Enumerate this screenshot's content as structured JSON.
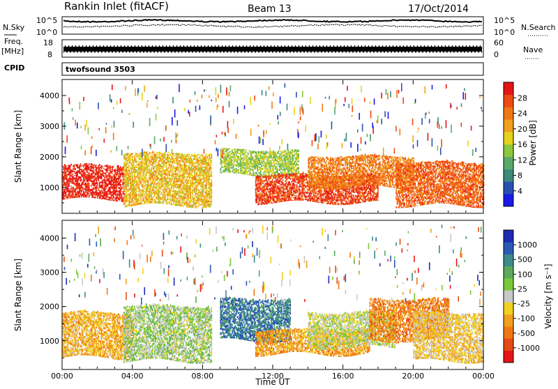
{
  "header": {
    "title": "Rankin Inlet (fitACF)",
    "beam": "Beam 13",
    "date": "17/Oct/2014"
  },
  "noise_panel": {
    "left_label": "N.Sky",
    "right_label": "N.Search",
    "left_ticks": [
      "10^5",
      "10^0"
    ],
    "right_ticks": [
      "10^5",
      "10^0"
    ]
  },
  "freq_panel": {
    "left_label_line1": "Freq.",
    "left_label_line2": "[MHz]",
    "right_label": "Nave",
    "left_ticks": [
      "18",
      "8"
    ],
    "right_ticks": [
      "60",
      "0"
    ]
  },
  "cpid_panel": {
    "label": "CPID",
    "program": "twofsound 3503"
  },
  "time_axis": {
    "label": "Time UT",
    "ticks": [
      "00:00",
      "04:00",
      "08:00",
      "12:00",
      "16:00",
      "20:00",
      "00:00"
    ]
  },
  "power_panel": {
    "ylabel": "Slant Range [km]",
    "yticks": [
      "1000",
      "2000",
      "3000",
      "4000"
    ],
    "colorbar_label": "Power [dB]",
    "colorbar_ticks": [
      "4",
      "8",
      "12",
      "16",
      "20",
      "24",
      "28"
    ],
    "colors": [
      "#1a1ae6",
      "#2a4fb0",
      "#3c8a7a",
      "#5aa86a",
      "#8cc83c",
      "#e6d21e",
      "#f0a01e",
      "#f07814",
      "#f04a14",
      "#e61414"
    ]
  },
  "velocity_panel": {
    "ylabel": "Slant Range [km]",
    "yticks": [
      "1000",
      "2000",
      "3000",
      "4000"
    ],
    "colorbar_label": "Velocity [m s⁻¹]",
    "colorbar_ticks": [
      "1000",
      "500",
      "100",
      "25",
      "-25",
      "-100",
      "-500",
      "-1000"
    ],
    "colors": [
      "#1e2ab4",
      "#2a5ab4",
      "#3c8a8a",
      "#5aaa5a",
      "#78c83c",
      "#c8c8c8",
      "#f0d21e",
      "#f0a01e",
      "#f07814",
      "#e64a14",
      "#e61414"
    ]
  },
  "chart_data": [
    {
      "type": "heatmap",
      "name": "Power",
      "xlabel": "Time UT",
      "ylabel": "Slant Range [km]",
      "xlim": [
        "00:00",
        "24:00"
      ],
      "ylim": [
        180,
        4500
      ],
      "zlabel": "Power [dB]",
      "zlim": [
        0,
        30
      ],
      "bands": [
        {
          "t_start": 0,
          "t_end": 3.5,
          "r_low": 600,
          "r_high": 1700,
          "z": 28
        },
        {
          "t_start": 3.5,
          "t_end": 8.5,
          "r_low": 400,
          "r_high": 2100,
          "z": 18
        },
        {
          "t_start": 9.0,
          "t_end": 13.5,
          "r_low": 1400,
          "r_high": 2200,
          "z": 14
        },
        {
          "t_start": 11.0,
          "t_end": 18.0,
          "r_low": 500,
          "r_high": 1400,
          "z": 26
        },
        {
          "t_start": 14.0,
          "t_end": 20.0,
          "r_low": 1000,
          "r_high": 2000,
          "z": 22
        },
        {
          "t_start": 19.0,
          "t_end": 24.0,
          "r_low": 400,
          "r_high": 1800,
          "z": 24
        }
      ]
    },
    {
      "type": "heatmap",
      "name": "Velocity",
      "xlabel": "Time UT",
      "ylabel": "Slant Range [km]",
      "xlim": [
        "00:00",
        "24:00"
      ],
      "ylim": [
        180,
        4500
      ],
      "zlabel": "Velocity [m s⁻¹]",
      "zlim": [
        -1000,
        1000
      ],
      "bands": [
        {
          "t_start": 0,
          "t_end": 4.0,
          "r_low": 500,
          "r_high": 1800,
          "z": -300
        },
        {
          "t_start": 3.5,
          "t_end": 8.5,
          "r_low": 400,
          "r_high": 2000,
          "z": 100
        },
        {
          "t_start": 9.0,
          "t_end": 13.0,
          "r_low": 1000,
          "r_high": 2200,
          "z": 600
        },
        {
          "t_start": 11.0,
          "t_end": 17.5,
          "r_low": 600,
          "r_high": 1300,
          "z": -400
        },
        {
          "t_start": 14.0,
          "t_end": 19.0,
          "r_low": 800,
          "r_high": 1800,
          "z": 0
        },
        {
          "t_start": 17.5,
          "t_end": 22.0,
          "r_low": 1000,
          "r_high": 2200,
          "z": -500
        },
        {
          "t_start": 20.0,
          "t_end": 24.0,
          "r_low": 400,
          "r_high": 1800,
          "z": -200
        }
      ]
    }
  ]
}
